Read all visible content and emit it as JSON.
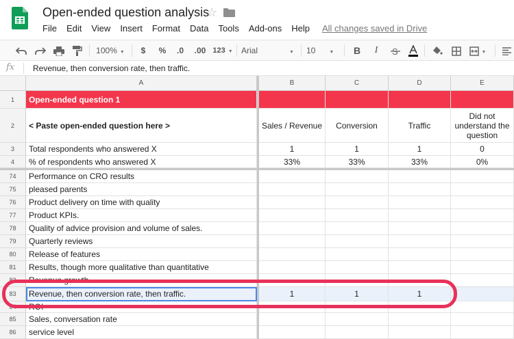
{
  "titlebar": {
    "doc_title": "Open-ended question analysis",
    "menu": [
      "File",
      "Edit",
      "View",
      "Insert",
      "Format",
      "Data",
      "Tools",
      "Add-ons",
      "Help"
    ],
    "saved_status": "All changes saved in Drive"
  },
  "toolbar": {
    "zoom": "100%",
    "currency": "$",
    "percent": "%",
    "dec_decrease": ".0",
    "dec_increase": ".00",
    "more_formats": "123",
    "font": "Arial",
    "font_size": "10",
    "bold": "B",
    "italic": "I"
  },
  "formula_bar": {
    "fx": "fx",
    "value": "Revenue, then conversion rate, then traffic."
  },
  "columns": [
    "A",
    "B",
    "C",
    "D",
    "E"
  ],
  "rows": [
    {
      "num": "1",
      "a": "Open-ended question 1",
      "b": "",
      "c": "",
      "d": "",
      "e": ""
    },
    {
      "num": "2",
      "a": "< Paste open-ended question here >",
      "b": "Sales / Revenue",
      "c": "Conversion",
      "d": "Traffic",
      "e": "Did not understand the question"
    },
    {
      "num": "3",
      "a": "Total respondents who answered X",
      "b": "1",
      "c": "1",
      "d": "1",
      "e": "0"
    },
    {
      "num": "4",
      "a": "% of respondents who answered X",
      "b": "33%",
      "c": "33%",
      "d": "33%",
      "e": "0%"
    },
    {
      "num": "74",
      "a": "Performance on CRO results",
      "b": "",
      "c": "",
      "d": "",
      "e": ""
    },
    {
      "num": "75",
      "a": "pleased parents",
      "b": "",
      "c": "",
      "d": "",
      "e": ""
    },
    {
      "num": "76",
      "a": "Product delivery on time with quality",
      "b": "",
      "c": "",
      "d": "",
      "e": ""
    },
    {
      "num": "77",
      "a": "Product KPIs.",
      "b": "",
      "c": "",
      "d": "",
      "e": ""
    },
    {
      "num": "78",
      "a": "Quality of advice provision and volume of sales.",
      "b": "",
      "c": "",
      "d": "",
      "e": ""
    },
    {
      "num": "79",
      "a": "Quarterly reviews",
      "b": "",
      "c": "",
      "d": "",
      "e": ""
    },
    {
      "num": "80",
      "a": "Release of features",
      "b": "",
      "c": "",
      "d": "",
      "e": ""
    },
    {
      "num": "81",
      "a": "Results, though more qualitative than quantitative",
      "b": "",
      "c": "",
      "d": "",
      "e": ""
    },
    {
      "num": "82",
      "a": "Revenue growth",
      "b": "",
      "c": "",
      "d": "",
      "e": ""
    },
    {
      "num": "83",
      "a": "Revenue, then conversion rate, then traffic.",
      "b": "1",
      "c": "1",
      "d": "1",
      "e": ""
    },
    {
      "num": "84",
      "a": "ROI",
      "b": "",
      "c": "",
      "d": "",
      "e": ""
    },
    {
      "num": "85",
      "a": "Sales,  conversation rate",
      "b": "",
      "c": "",
      "d": "",
      "e": ""
    },
    {
      "num": "86",
      "a": "service level",
      "b": "",
      "c": "",
      "d": "",
      "e": ""
    }
  ],
  "colors": {
    "header_red": "#f4364c",
    "annotation": "#e8315a",
    "selection": "#4a86e8"
  }
}
